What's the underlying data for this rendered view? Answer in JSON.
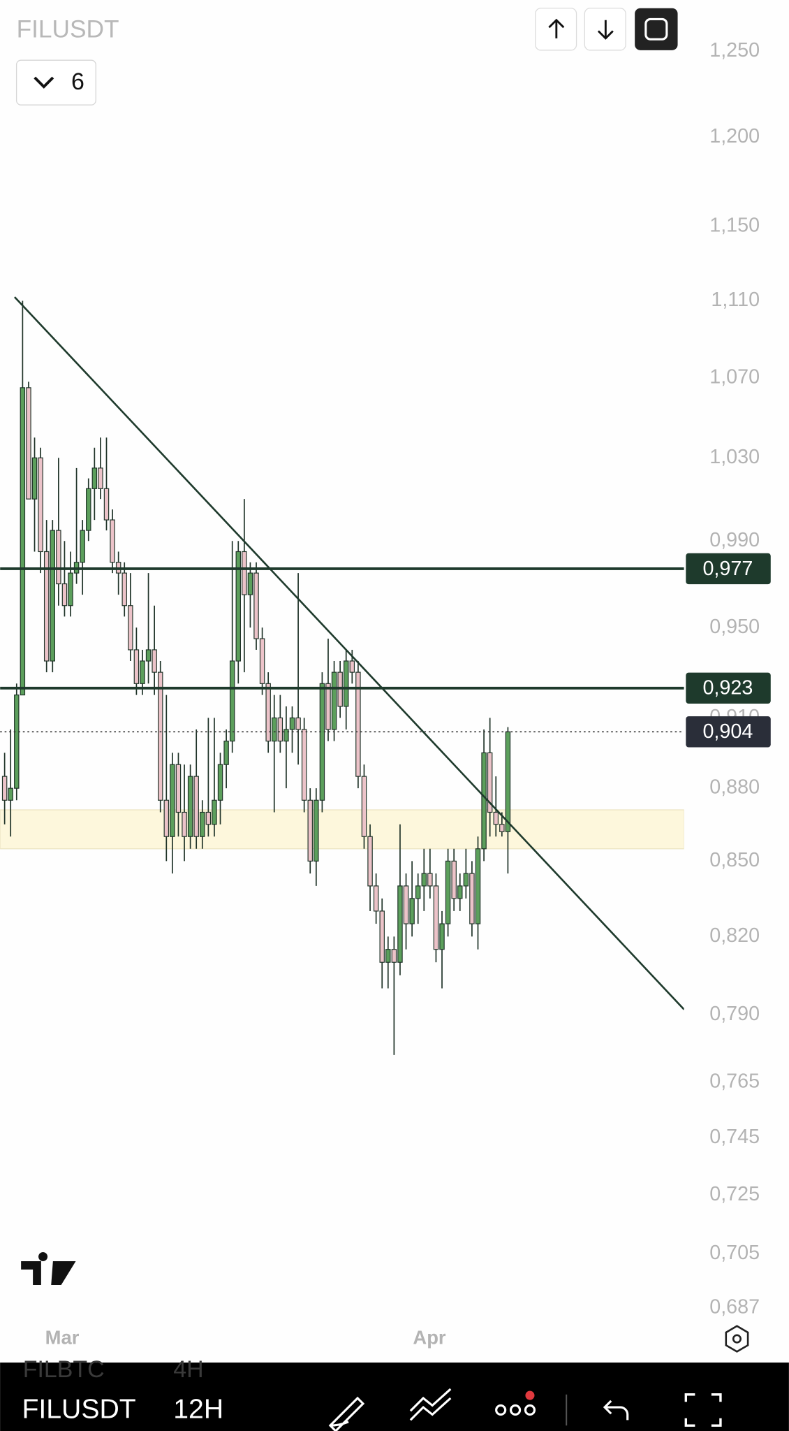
{
  "ui": {
    "symbol": "FILUSDT",
    "indicator_count": 6,
    "bottom_bar": {
      "ghost_symbol": "FILBTC",
      "ghost_interval": "4H",
      "symbol": "FILUSDT",
      "interval": "12H"
    }
  },
  "chart_data": {
    "type": "candlestick",
    "log_scale": true,
    "up_color": "#5c9f5c",
    "down_color": "#ecc3c9",
    "border_color": "#1f3328",
    "open": [
      0.885,
      0.875,
      0.88,
      0.92,
      1.065,
      1.01,
      1.03,
      0.985,
      0.935,
      0.995,
      0.97,
      0.96,
      0.975,
      0.98,
      0.995,
      1.015,
      1.025,
      1.015,
      1.0,
      0.98,
      0.975,
      0.96,
      0.94,
      0.925,
      0.935,
      0.94,
      0.93,
      0.875,
      0.86,
      0.89,
      0.87,
      0.86,
      0.885,
      0.86,
      0.87,
      0.865,
      0.875,
      0.89,
      0.9,
      0.935,
      0.985,
      0.965,
      0.975,
      0.945,
      0.925,
      0.9,
      0.91,
      0.9,
      0.905,
      0.91,
      0.905,
      0.875,
      0.85,
      0.875,
      0.925,
      0.905,
      0.93,
      0.915,
      0.935,
      0.93,
      0.885,
      0.86,
      0.84,
      0.83,
      0.81,
      0.815,
      0.81,
      0.84,
      0.825,
      0.835,
      0.84,
      0.845,
      0.84,
      0.815,
      0.825,
      0.85,
      0.835,
      0.84,
      0.845,
      0.825,
      0.855,
      0.895,
      0.87,
      0.865,
      0.862
    ],
    "high": [
      0.895,
      0.905,
      0.925,
      1.11,
      1.068,
      1.04,
      1.035,
      1.0,
      1.0,
      1.03,
      0.99,
      0.985,
      1.025,
      1.0,
      1.02,
      1.035,
      1.04,
      1.04,
      1.005,
      0.985,
      0.98,
      0.975,
      0.95,
      0.94,
      0.975,
      0.96,
      0.935,
      0.92,
      0.895,
      0.895,
      0.89,
      0.89,
      0.905,
      0.875,
      0.91,
      0.91,
      0.895,
      0.905,
      0.99,
      0.99,
      1.01,
      0.98,
      0.98,
      0.95,
      0.93,
      0.92,
      0.92,
      0.915,
      0.915,
      0.975,
      0.91,
      0.88,
      0.88,
      0.93,
      0.945,
      0.935,
      0.935,
      0.94,
      0.94,
      0.935,
      0.89,
      0.865,
      0.845,
      0.835,
      0.82,
      0.82,
      0.865,
      0.845,
      0.85,
      0.845,
      0.855,
      0.855,
      0.845,
      0.83,
      0.855,
      0.855,
      0.845,
      0.855,
      0.85,
      0.86,
      0.905,
      0.91,
      0.885,
      0.87,
      0.906
    ],
    "low": [
      0.865,
      0.86,
      0.875,
      0.92,
      1.01,
      0.985,
      0.975,
      0.93,
      0.93,
      0.96,
      0.955,
      0.955,
      0.97,
      0.965,
      0.99,
      1.0,
      1.01,
      0.995,
      0.975,
      0.965,
      0.955,
      0.935,
      0.92,
      0.92,
      0.925,
      0.92,
      0.87,
      0.85,
      0.845,
      0.86,
      0.85,
      0.855,
      0.855,
      0.855,
      0.86,
      0.86,
      0.865,
      0.88,
      0.895,
      0.925,
      0.93,
      0.95,
      0.94,
      0.92,
      0.895,
      0.87,
      0.895,
      0.88,
      0.895,
      0.89,
      0.87,
      0.845,
      0.84,
      0.87,
      0.9,
      0.9,
      0.91,
      0.905,
      0.925,
      0.88,
      0.855,
      0.83,
      0.825,
      0.8,
      0.8,
      0.775,
      0.805,
      0.815,
      0.82,
      0.825,
      0.83,
      0.835,
      0.81,
      0.8,
      0.82,
      0.83,
      0.83,
      0.835,
      0.82,
      0.815,
      0.85,
      0.86,
      0.86,
      0.86,
      0.845
    ],
    "close": [
      0.875,
      0.88,
      0.92,
      1.065,
      1.01,
      1.03,
      0.985,
      0.935,
      0.995,
      0.97,
      0.96,
      0.975,
      0.98,
      0.995,
      1.015,
      1.025,
      1.015,
      1.0,
      0.98,
      0.975,
      0.96,
      0.94,
      0.925,
      0.935,
      0.94,
      0.93,
      0.875,
      0.86,
      0.89,
      0.87,
      0.86,
      0.885,
      0.86,
      0.87,
      0.865,
      0.875,
      0.89,
      0.9,
      0.935,
      0.985,
      0.965,
      0.975,
      0.945,
      0.925,
      0.9,
      0.91,
      0.9,
      0.905,
      0.91,
      0.905,
      0.875,
      0.85,
      0.875,
      0.925,
      0.905,
      0.93,
      0.915,
      0.935,
      0.93,
      0.885,
      0.86,
      0.84,
      0.83,
      0.81,
      0.815,
      0.81,
      0.84,
      0.825,
      0.835,
      0.84,
      0.845,
      0.84,
      0.815,
      0.825,
      0.85,
      0.835,
      0.84,
      0.845,
      0.825,
      0.855,
      0.895,
      0.87,
      0.865,
      0.862,
      0.904
    ],
    "xlim": [
      -0.76,
      113.4
    ],
    "xticks": [
      {
        "value": 9.6,
        "label": "Mar"
      },
      {
        "value": 70.9,
        "label": "Apr"
      }
    ],
    "ylim": [
      0.685,
      1.281
    ],
    "yticks": [
      {
        "value": 1.25,
        "label": "1,250"
      },
      {
        "value": 1.2,
        "label": "1,200"
      },
      {
        "value": 1.15,
        "label": "1,150"
      },
      {
        "value": 1.11,
        "label": "1,110"
      },
      {
        "value": 1.07,
        "label": "1,070"
      },
      {
        "value": 1.03,
        "label": "1,030"
      },
      {
        "value": 0.99,
        "label": "0,990"
      },
      {
        "value": 0.95,
        "label": "0,950"
      },
      {
        "value": 0.91,
        "label": "0,910"
      },
      {
        "value": 0.88,
        "label": "0,880"
      },
      {
        "value": 0.85,
        "label": "0,850"
      },
      {
        "value": 0.82,
        "label": "0,820"
      },
      {
        "value": 0.79,
        "label": "0,790"
      },
      {
        "value": 0.765,
        "label": "0,765"
      },
      {
        "value": 0.745,
        "label": "0,745"
      },
      {
        "value": 0.725,
        "label": "0,725"
      },
      {
        "value": 0.705,
        "label": "0,705"
      },
      {
        "value": 0.687,
        "label": "0,687"
      }
    ],
    "levels": [
      {
        "value": 0.977,
        "label": "0,977",
        "color": "#1e3a2c",
        "style": "solid"
      },
      {
        "value": 0.923,
        "label": "0,923",
        "color": "#1e3a2c",
        "style": "solid"
      },
      {
        "value": 0.904,
        "label": "0,904",
        "color": "#2a2e39",
        "style": "dotted"
      }
    ],
    "zone": [
      0.855,
      0.871
    ],
    "zone_color": "#fdf7dc",
    "trendline": {
      "x": [
        1.67,
        113.4
      ],
      "y": [
        1.112,
        0.792
      ],
      "color": "#1e3a2c"
    }
  }
}
